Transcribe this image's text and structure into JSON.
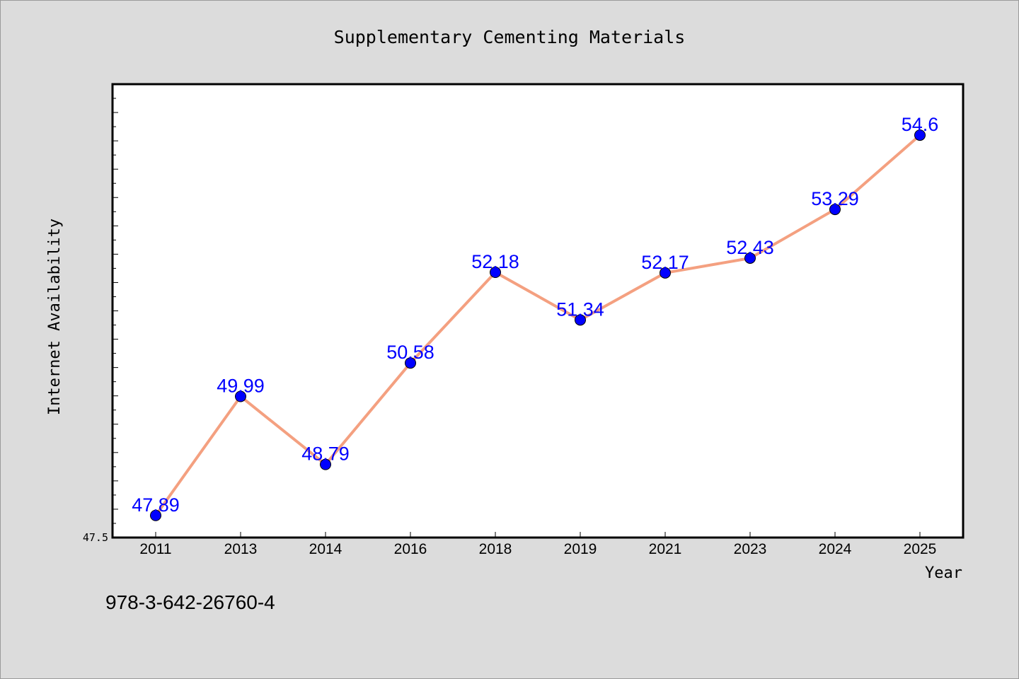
{
  "chart_data": {
    "type": "line",
    "title": "Supplementary Cementing Materials",
    "xlabel": "Year",
    "ylabel": "Internet Availability",
    "categories": [
      "2011",
      "2013",
      "2014",
      "2016",
      "2018",
      "2019",
      "2021",
      "2023",
      "2024",
      "2025"
    ],
    "series": [
      {
        "values": [
          47.89,
          49.99,
          48.79,
          50.58,
          52.18,
          51.34,
          52.17,
          52.43,
          53.29,
          54.6
        ]
      }
    ],
    "ylim": [
      47.5,
      55.5
    ],
    "yticks_labeled": [
      47.5
    ],
    "data_labels": [
      "47.89",
      "49.99",
      "48.79",
      "50.58",
      "52.18",
      "51.34",
      "52.17",
      "52.43",
      "53.29",
      "54.6"
    ],
    "grid": false,
    "line_color": "#f4a080",
    "marker_color": "#0000ff",
    "label_color": "#0000ff",
    "background_color": "#dcdcdc",
    "plot_background": "#ffffff"
  },
  "footer": {
    "isbn": "978-3-642-26760-4"
  }
}
